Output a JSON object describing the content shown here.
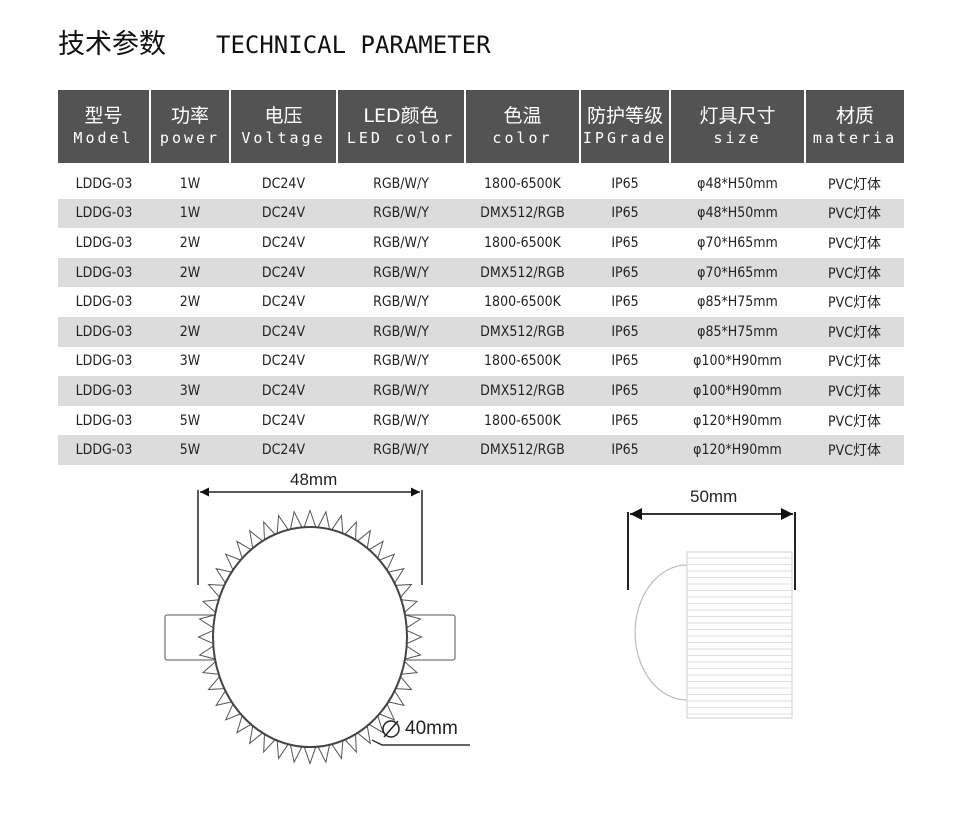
{
  "title": {
    "zh": "技术参数",
    "en": "TECHNICAL PARAMETER"
  },
  "headers": [
    {
      "zh": "型号",
      "en": "Model"
    },
    {
      "zh": "功率",
      "en": "power"
    },
    {
      "zh": "电压",
      "en": "Voltage"
    },
    {
      "zh": "LED颜色",
      "en": "LED color"
    },
    {
      "zh": "色温",
      "en": "color"
    },
    {
      "zh": "防护等级",
      "en": "IPGrade"
    },
    {
      "zh": "灯具尺寸",
      "en": "size"
    },
    {
      "zh": "材质",
      "en": "materia"
    }
  ],
  "rows": [
    [
      "LDDG-03",
      "1W",
      "DC24V",
      "RGB/W/Y",
      "1800-6500K",
      "IP65",
      "φ48*H50mm",
      "PVC灯体"
    ],
    [
      "LDDG-03",
      "1W",
      "DC24V",
      "RGB/W/Y",
      "DMX512/RGB",
      "IP65",
      "φ48*H50mm",
      "PVC灯体"
    ],
    [
      "LDDG-03",
      "2W",
      "DC24V",
      "RGB/W/Y",
      "1800-6500K",
      "IP65",
      "φ70*H65mm",
      "PVC灯体"
    ],
    [
      "LDDG-03",
      "2W",
      "DC24V",
      "RGB/W/Y",
      "DMX512/RGB",
      "IP65",
      "φ70*H65mm",
      "PVC灯体"
    ],
    [
      "LDDG-03",
      "2W",
      "DC24V",
      "RGB/W/Y",
      "1800-6500K",
      "IP65",
      "φ85*H75mm",
      "PVC灯体"
    ],
    [
      "LDDG-03",
      "2W",
      "DC24V",
      "RGB/W/Y",
      "DMX512/RGB",
      "IP65",
      "φ85*H75mm",
      "PVC灯体"
    ],
    [
      "LDDG-03",
      "3W",
      "DC24V",
      "RGB/W/Y",
      "1800-6500K",
      "IP65",
      "φ100*H90mm",
      "PVC灯体"
    ],
    [
      "LDDG-03",
      "3W",
      "DC24V",
      "RGB/W/Y",
      "DMX512/RGB",
      "IP65",
      "φ100*H90mm",
      "PVC灯体"
    ],
    [
      "LDDG-03",
      "5W",
      "DC24V",
      "RGB/W/Y",
      "1800-6500K",
      "IP65",
      "φ120*H90mm",
      "PVC灯体"
    ],
    [
      "LDDG-03",
      "5W",
      "DC24V",
      "RGB/W/Y",
      "DMX512/RGB",
      "IP65",
      "φ120*H90mm",
      "PVC灯体"
    ]
  ],
  "diagram": {
    "front_width": "48mm",
    "front_diameter": "40mm",
    "side_width": "50mm"
  }
}
